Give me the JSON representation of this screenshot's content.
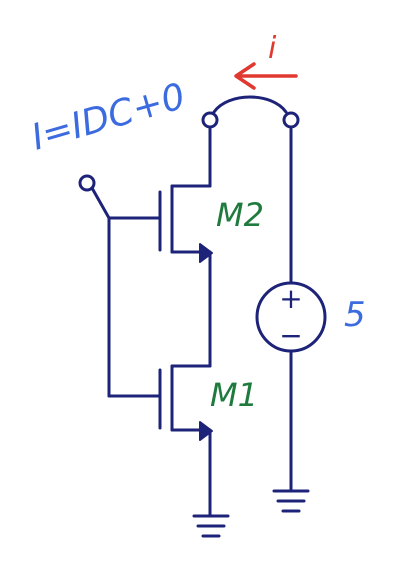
{
  "annotation": {
    "current_equation": "I=IDC+0"
  },
  "arrow_label": "i",
  "transistors": {
    "top": "M2",
    "bottom": "M1"
  },
  "source": {
    "label": "5",
    "plus": "+",
    "minus": "−"
  },
  "colors": {
    "wire": "#1d2378",
    "blue_note": "#3c6be0",
    "green_note": "#1f7a3e",
    "red_note": "#e0392f"
  }
}
